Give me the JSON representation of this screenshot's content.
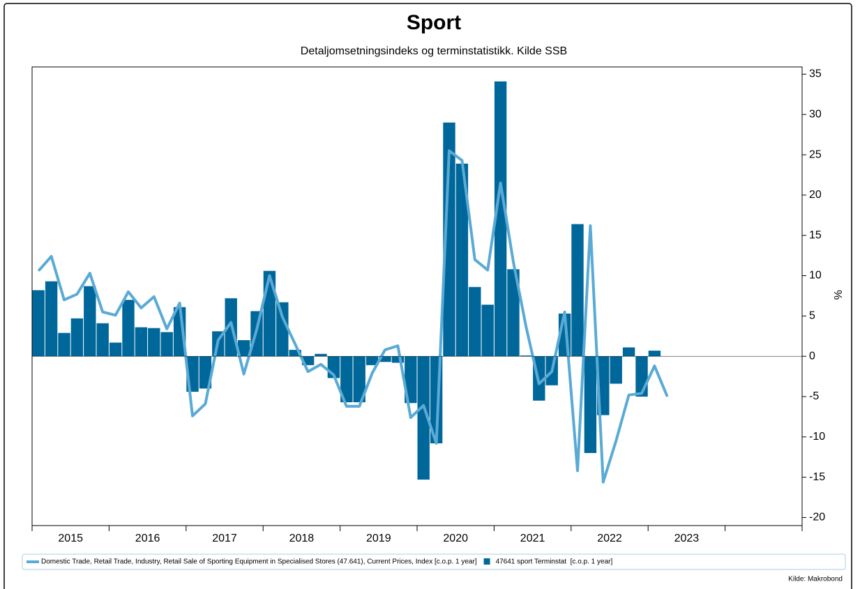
{
  "chart_data": {
    "type": "bar_line",
    "title": "Sport",
    "subtitle": "Detaljomsetningsindeks og terminstatistikk. Kilde SSB",
    "y_label": "%",
    "source": "Kilde: Makrobond",
    "periods_per_year": 6,
    "year_labels": [
      "2015",
      "2016",
      "2017",
      "2018",
      "2019",
      "2020",
      "2021",
      "2022",
      "2023"
    ],
    "ylim": [
      -21,
      35.9
    ],
    "yticks": [
      -20,
      -15,
      -10,
      -5,
      0,
      5,
      10,
      15,
      20,
      25,
      30,
      35
    ],
    "series": [
      {
        "name": "Domestic Trade, Retail Trade, Industry, Retail Sale of Sporting Equipment in Specialised Stores (47.641), Current Prices, Index [c.o.p. 1 year]",
        "kind": "line",
        "color": "#5aaad6",
        "values": [
          10.6,
          12.4,
          7.0,
          7.7,
          10.3,
          5.5,
          5.1,
          8.0,
          6.0,
          7.4,
          3.4,
          6.6,
          -7.4,
          -5.9,
          2.0,
          4.2,
          -2.2,
          3.3,
          10.0,
          4.9,
          1.5,
          -1.9,
          -1.0,
          -2.3,
          -6.2,
          -6.2,
          -2.1,
          0.8,
          1.3,
          -7.6,
          -6.1,
          -10.8,
          25.5,
          24.3,
          12.0,
          10.7,
          21.5,
          11.7,
          3.6,
          -3.4,
          -1.9,
          5.5,
          -14.2,
          16.2,
          -15.6,
          -10.5,
          -4.8,
          -4.6,
          -1.2,
          -5.0
        ]
      },
      {
        "name": "47641 sport Terminstat  [c.o.p. 1 year]",
        "kind": "bar",
        "color": "#00679a",
        "values": [
          8.2,
          9.3,
          2.9,
          4.7,
          8.7,
          4.1,
          1.7,
          7.0,
          3.6,
          3.5,
          3.0,
          6.1,
          -4.4,
          -4.0,
          3.1,
          7.2,
          2.0,
          5.6,
          10.6,
          6.7,
          0.8,
          -1.1,
          0.3,
          -2.7,
          -5.7,
          -5.7,
          -1.1,
          -0.7,
          -0.8,
          -5.8,
          -15.3,
          -10.8,
          29.0,
          23.9,
          8.6,
          6.4,
          34.1,
          10.8,
          0.1,
          -5.5,
          -3.6,
          5.3,
          16.4,
          -12.0,
          -7.3,
          -3.4,
          1.1,
          -5.0,
          0.7,
          null
        ]
      }
    ]
  }
}
